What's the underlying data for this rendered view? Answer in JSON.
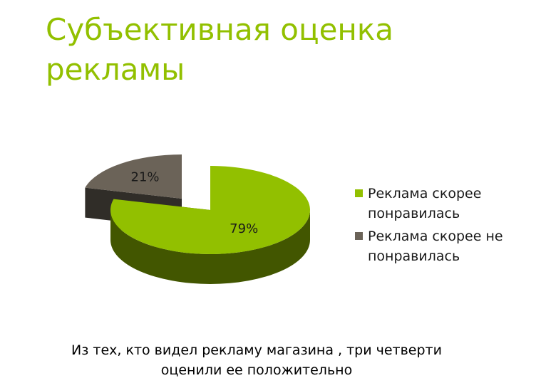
{
  "chart_data": {
    "type": "pie",
    "title": "Субъективная оценка рекламы",
    "categories": [
      "Реклама скорее понравилась",
      "Реклама скорее не понравилась"
    ],
    "values": [
      79,
      21
    ],
    "value_labels": [
      "79%",
      "21%"
    ],
    "colors": [
      "#92c000",
      "#6b6358"
    ],
    "caption": "Из тех, кто видел рекламу магазина , три четверти оценили ее положительно"
  }
}
